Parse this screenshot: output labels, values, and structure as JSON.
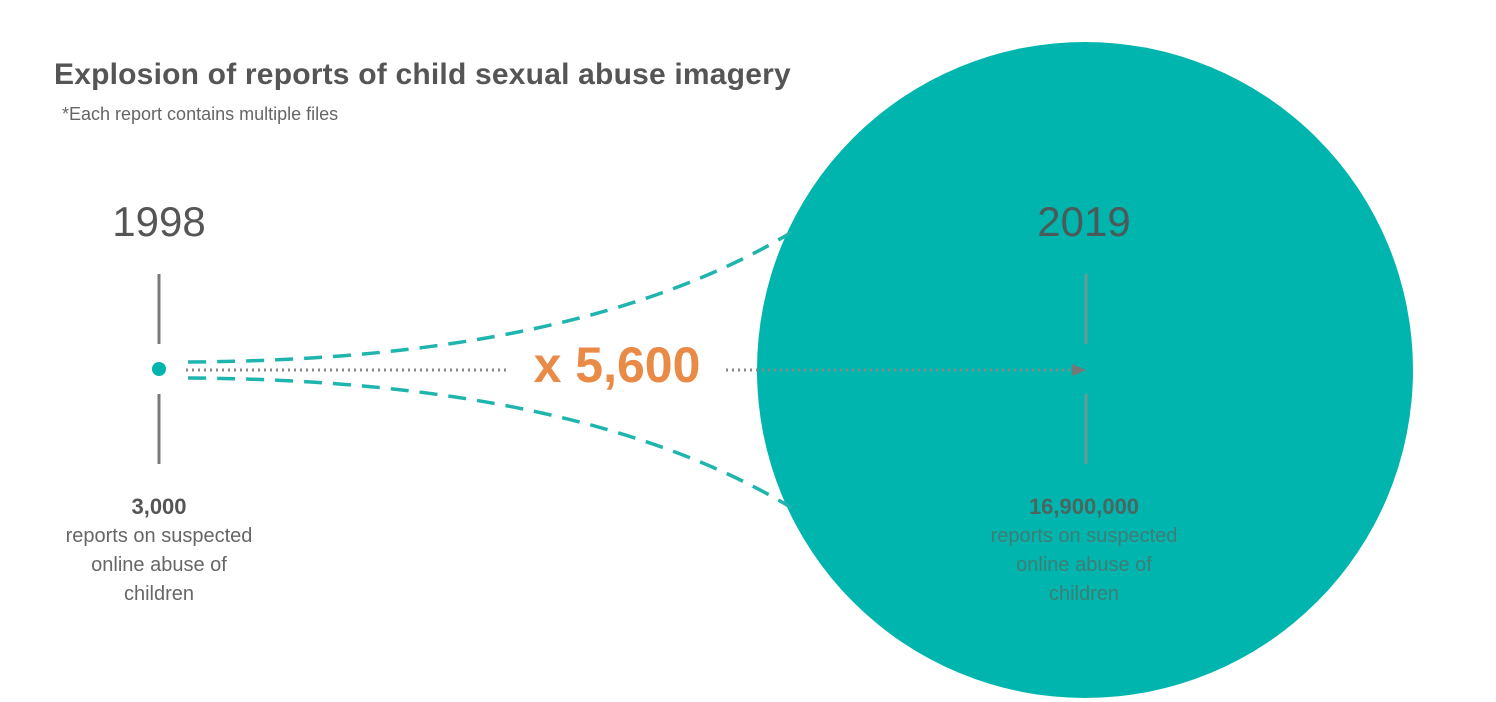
{
  "title": "Explosion of reports of child sexual abuse imagery",
  "subtitle": "*Each report contains multiple files",
  "multiplier": "x 5,600",
  "left": {
    "year": "1998",
    "value": "3,000",
    "description": [
      "reports on suspected",
      "online abuse of",
      "children"
    ]
  },
  "right": {
    "year": "2019",
    "value": "16,900,000",
    "description": [
      "reports on suspected",
      "online abuse of",
      "children"
    ]
  },
  "colors": {
    "accent": "#00b5ad",
    "multiplier": "#e98a47",
    "text": "#555555"
  }
}
